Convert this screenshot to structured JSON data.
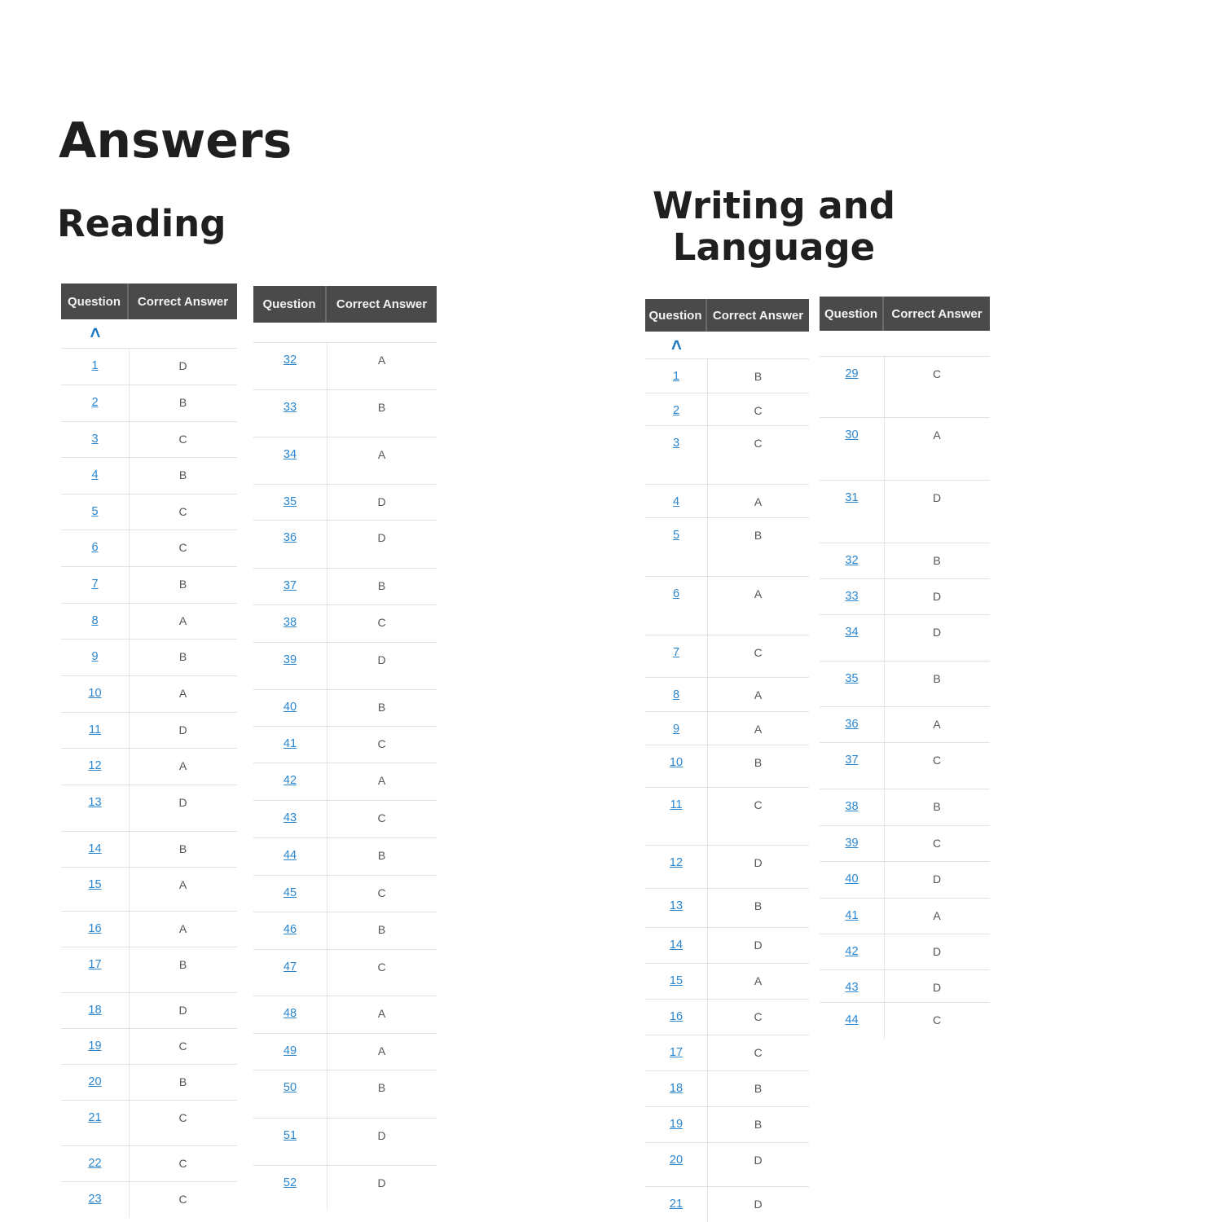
{
  "page_title": "Answers",
  "reading": {
    "title": "Reading",
    "header": {
      "question": "Question",
      "answer": "Correct Answer"
    },
    "caret_icon": "chevron-up-icon",
    "tables": [
      {
        "rows": [
          {
            "q": "1",
            "a": "D"
          },
          {
            "q": "2",
            "a": "B"
          },
          {
            "q": "3",
            "a": "C"
          },
          {
            "q": "4",
            "a": "B"
          },
          {
            "q": "5",
            "a": "C"
          },
          {
            "q": "6",
            "a": "C"
          },
          {
            "q": "7",
            "a": "B"
          },
          {
            "q": "8",
            "a": "A"
          },
          {
            "q": "9",
            "a": "B"
          },
          {
            "q": "10",
            "a": "A"
          },
          {
            "q": "11",
            "a": "D"
          },
          {
            "q": "12",
            "a": "A"
          },
          {
            "q": "13",
            "a": "D"
          },
          {
            "q": "14",
            "a": "B"
          },
          {
            "q": "15",
            "a": "A"
          },
          {
            "q": "16",
            "a": "A"
          },
          {
            "q": "17",
            "a": "B"
          },
          {
            "q": "18",
            "a": "D"
          },
          {
            "q": "19",
            "a": "C"
          },
          {
            "q": "20",
            "a": "B"
          },
          {
            "q": "21",
            "a": "C"
          },
          {
            "q": "22",
            "a": "C"
          },
          {
            "q": "23",
            "a": "C"
          }
        ]
      },
      {
        "rows": [
          {
            "q": "32",
            "a": "A"
          },
          {
            "q": "33",
            "a": "B"
          },
          {
            "q": "34",
            "a": "A"
          },
          {
            "q": "35",
            "a": "D"
          },
          {
            "q": "36",
            "a": "D"
          },
          {
            "q": "37",
            "a": "B"
          },
          {
            "q": "38",
            "a": "C"
          },
          {
            "q": "39",
            "a": "D"
          },
          {
            "q": "40",
            "a": "B"
          },
          {
            "q": "41",
            "a": "C"
          },
          {
            "q": "42",
            "a": "A"
          },
          {
            "q": "43",
            "a": "C"
          },
          {
            "q": "44",
            "a": "B"
          },
          {
            "q": "45",
            "a": "C"
          },
          {
            "q": "46",
            "a": "B"
          },
          {
            "q": "47",
            "a": "C"
          },
          {
            "q": "48",
            "a": "A"
          },
          {
            "q": "49",
            "a": "A"
          },
          {
            "q": "50",
            "a": "B"
          },
          {
            "q": "51",
            "a": "D"
          },
          {
            "q": "52",
            "a": "D"
          }
        ]
      }
    ]
  },
  "writing": {
    "title_line1": "Writing and",
    "title_line2": "Language",
    "header": {
      "question": "Question",
      "answer": "Correct Answer"
    },
    "caret_icon": "chevron-up-icon",
    "tables": [
      {
        "rows": [
          {
            "q": "1",
            "a": "B"
          },
          {
            "q": "2",
            "a": "C"
          },
          {
            "q": "3",
            "a": "C"
          },
          {
            "q": "4",
            "a": "A"
          },
          {
            "q": "5",
            "a": "B"
          },
          {
            "q": "6",
            "a": "A"
          },
          {
            "q": "7",
            "a": "C"
          },
          {
            "q": "8",
            "a": "A"
          },
          {
            "q": "9",
            "a": "A"
          },
          {
            "q": "10",
            "a": "B"
          },
          {
            "q": "11",
            "a": "C"
          },
          {
            "q": "12",
            "a": "D"
          },
          {
            "q": "13",
            "a": "B"
          },
          {
            "q": "14",
            "a": "D"
          },
          {
            "q": "15",
            "a": "A"
          },
          {
            "q": "16",
            "a": "C"
          },
          {
            "q": "17",
            "a": "C"
          },
          {
            "q": "18",
            "a": "B"
          },
          {
            "q": "19",
            "a": "B"
          },
          {
            "q": "20",
            "a": "D"
          },
          {
            "q": "21",
            "a": "D"
          }
        ]
      },
      {
        "rows": [
          {
            "q": "29",
            "a": "C"
          },
          {
            "q": "30",
            "a": "A"
          },
          {
            "q": "31",
            "a": "D"
          },
          {
            "q": "32",
            "a": "B"
          },
          {
            "q": "33",
            "a": "D"
          },
          {
            "q": "34",
            "a": "D"
          },
          {
            "q": "35",
            "a": "B"
          },
          {
            "q": "36",
            "a": "A"
          },
          {
            "q": "37",
            "a": "C"
          },
          {
            "q": "38",
            "a": "B"
          },
          {
            "q": "39",
            "a": "C"
          },
          {
            "q": "40",
            "a": "D"
          },
          {
            "q": "41",
            "a": "A"
          },
          {
            "q": "42",
            "a": "D"
          },
          {
            "q": "43",
            "a": "D"
          },
          {
            "q": "44",
            "a": "C"
          }
        ]
      }
    ]
  }
}
